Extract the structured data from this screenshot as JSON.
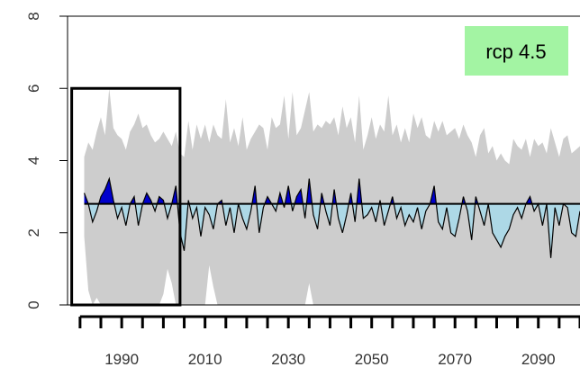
{
  "chart_data": {
    "type": "area",
    "title": "",
    "xlabel": "",
    "ylabel": "",
    "xlim": [
      1977,
      2100
    ],
    "ylim": [
      0,
      8
    ],
    "x_ticks": [
      1980,
      1985,
      1990,
      1995,
      2000,
      2005,
      2010,
      2015,
      2020,
      2025,
      2030,
      2035,
      2040,
      2045,
      2050,
      2055,
      2060,
      2065,
      2070,
      2075,
      2080,
      2085,
      2090,
      2095,
      2100
    ],
    "x_tick_labels": [
      "1990",
      "2010",
      "2030",
      "2050",
      "2070",
      "2090"
    ],
    "x_tick_label_values": [
      1990,
      2010,
      2030,
      2050,
      2070,
      2090
    ],
    "y_ticks": [
      0,
      2,
      4,
      6,
      8
    ],
    "y_tick_labels": [
      "0",
      "2",
      "4",
      "6",
      "8"
    ],
    "baseline": 2.8,
    "annotation": "rcp 4.5",
    "annotation_color": "#a3f4a3",
    "reference_box": {
      "x": [
        1978,
        2004
      ],
      "y": [
        0,
        6
      ]
    },
    "colors": {
      "envelope": "#cdcdcd",
      "above_baseline": "#0000cc",
      "below_baseline": "#add8e6",
      "line": "#000000"
    },
    "series": [
      {
        "values": [
          [
            1981.0,
            3.1
          ],
          [
            1982.0,
            2.8
          ],
          [
            1983.0,
            2.3
          ],
          [
            1984.0,
            2.6
          ],
          [
            1985.0,
            3.0
          ],
          [
            1986.0,
            3.2
          ],
          [
            1987.0,
            3.5
          ],
          [
            1988.0,
            2.9
          ],
          [
            1989.0,
            2.4
          ],
          [
            1990.0,
            2.7
          ],
          [
            1991.0,
            2.2
          ],
          [
            1992.0,
            2.8
          ],
          [
            1993.0,
            3.0
          ],
          [
            1994.0,
            2.2
          ],
          [
            1995.0,
            2.8
          ],
          [
            1996.0,
            3.1
          ],
          [
            1997.0,
            2.9
          ],
          [
            1998.0,
            2.6
          ],
          [
            1999.0,
            3.0
          ],
          [
            2000.0,
            2.9
          ],
          [
            2001.0,
            2.4
          ],
          [
            2002.0,
            2.8
          ],
          [
            2003.0,
            3.3
          ],
          [
            2004.0,
            2.0
          ],
          [
            2005.0,
            1.5
          ],
          [
            2006.0,
            2.9
          ],
          [
            2007.0,
            2.4
          ],
          [
            2008.0,
            2.7
          ],
          [
            2009.0,
            1.9
          ],
          [
            2010.0,
            2.7
          ],
          [
            2011.0,
            2.5
          ],
          [
            2012.0,
            2.1
          ],
          [
            2013.0,
            2.8
          ],
          [
            2014.0,
            2.9
          ],
          [
            2015.0,
            2.2
          ],
          [
            2016.0,
            2.7
          ],
          [
            2017.0,
            2.0
          ],
          [
            2018.0,
            2.8
          ],
          [
            2019.0,
            2.4
          ],
          [
            2020.0,
            2.1
          ],
          [
            2021.0,
            2.6
          ],
          [
            2022.0,
            3.3
          ],
          [
            2023.0,
            2.0
          ],
          [
            2024.0,
            2.7
          ],
          [
            2025.0,
            3.0
          ],
          [
            2026.0,
            2.8
          ],
          [
            2027.0,
            2.6
          ],
          [
            2028.0,
            3.1
          ],
          [
            2029.0,
            2.7
          ],
          [
            2030.0,
            3.3
          ],
          [
            2031.0,
            2.6
          ],
          [
            2032.0,
            3.0
          ],
          [
            2033.0,
            3.2
          ],
          [
            2034.0,
            2.4
          ],
          [
            2035.0,
            3.5
          ],
          [
            2036.0,
            2.5
          ],
          [
            2037.0,
            2.1
          ],
          [
            2038.0,
            3.1
          ],
          [
            2039.0,
            2.6
          ],
          [
            2040.0,
            2.2
          ],
          [
            2041.0,
            3.2
          ],
          [
            2042.0,
            2.4
          ],
          [
            2043.0,
            2.0
          ],
          [
            2044.0,
            2.5
          ],
          [
            2045.0,
            3.1
          ],
          [
            2046.0,
            2.3
          ],
          [
            2047.0,
            3.5
          ],
          [
            2048.0,
            2.4
          ],
          [
            2049.0,
            2.5
          ],
          [
            2050.0,
            2.7
          ],
          [
            2051.0,
            2.3
          ],
          [
            2052.0,
            2.9
          ],
          [
            2053.0,
            2.2
          ],
          [
            2054.0,
            2.6
          ],
          [
            2055.0,
            3.0
          ],
          [
            2056.0,
            2.4
          ],
          [
            2057.0,
            2.7
          ],
          [
            2058.0,
            2.2
          ],
          [
            2059.0,
            2.5
          ],
          [
            2060.0,
            2.3
          ],
          [
            2061.0,
            2.7
          ],
          [
            2062.0,
            2.1
          ],
          [
            2063.0,
            2.6
          ],
          [
            2064.0,
            2.8
          ],
          [
            2065.0,
            3.3
          ],
          [
            2066.0,
            2.3
          ],
          [
            2067.0,
            2.1
          ],
          [
            2068.0,
            2.7
          ],
          [
            2069.0,
            2.0
          ],
          [
            2070.0,
            1.9
          ],
          [
            2071.0,
            2.4
          ],
          [
            2072.0,
            3.0
          ],
          [
            2073.0,
            2.6
          ],
          [
            2074.0,
            1.8
          ],
          [
            2075.0,
            3.0
          ],
          [
            2076.0,
            2.6
          ],
          [
            2077.0,
            2.2
          ],
          [
            2078.0,
            2.8
          ],
          [
            2079.0,
            2.0
          ],
          [
            2080.0,
            1.8
          ],
          [
            2081.0,
            1.6
          ],
          [
            2082.0,
            1.9
          ],
          [
            2083.0,
            2.1
          ],
          [
            2084.0,
            2.5
          ],
          [
            2085.0,
            2.7
          ],
          [
            2086.0,
            2.4
          ],
          [
            2087.0,
            2.8
          ],
          [
            2088.0,
            3.0
          ],
          [
            2089.0,
            2.6
          ],
          [
            2090.0,
            2.8
          ],
          [
            2091.0,
            2.2
          ],
          [
            2092.0,
            2.8
          ],
          [
            2093.0,
            1.3
          ],
          [
            2094.0,
            2.7
          ],
          [
            2095.0,
            2.2
          ],
          [
            2096.0,
            2.8
          ],
          [
            2097.0,
            2.7
          ],
          [
            2098.0,
            2.0
          ],
          [
            2099.0,
            1.9
          ],
          [
            2100.0,
            2.6
          ]
        ]
      }
    ],
    "envelope_upper": [
      [
        1981,
        4.1
      ],
      [
        1982,
        4.5
      ],
      [
        1983,
        4.3
      ],
      [
        1984,
        4.8
      ],
      [
        1985,
        5.2
      ],
      [
        1986,
        4.7
      ],
      [
        1987,
        6.0
      ],
      [
        1988,
        4.9
      ],
      [
        1989,
        4.7
      ],
      [
        1990,
        4.6
      ],
      [
        1991,
        4.3
      ],
      [
        1992,
        4.8
      ],
      [
        1993,
        5.0
      ],
      [
        1994,
        5.3
      ],
      [
        1995,
        4.9
      ],
      [
        1996,
        5.0
      ],
      [
        1997,
        4.7
      ],
      [
        1998,
        4.5
      ],
      [
        1999,
        4.6
      ],
      [
        2000,
        4.8
      ],
      [
        2001,
        4.6
      ],
      [
        2002,
        4.4
      ],
      [
        2003,
        4.8
      ],
      [
        2004,
        4.2
      ],
      [
        2005,
        4.1
      ],
      [
        2006,
        5.1
      ],
      [
        2007,
        4.3
      ],
      [
        2008,
        5.0
      ],
      [
        2009,
        4.6
      ],
      [
        2010,
        5.0
      ],
      [
        2011,
        4.5
      ],
      [
        2012,
        5.0
      ],
      [
        2013,
        4.7
      ],
      [
        2014,
        4.6
      ],
      [
        2015,
        5.7
      ],
      [
        2016,
        4.5
      ],
      [
        2017,
        4.9
      ],
      [
        2018,
        4.4
      ],
      [
        2019,
        5.2
      ],
      [
        2020,
        4.3
      ],
      [
        2021,
        4.6
      ],
      [
        2022,
        4.8
      ],
      [
        2023,
        5.0
      ],
      [
        2024,
        4.9
      ],
      [
        2025,
        4.3
      ],
      [
        2026,
        5.2
      ],
      [
        2027,
        4.9
      ],
      [
        2028,
        5.0
      ],
      [
        2029,
        5.8
      ],
      [
        2030,
        4.6
      ],
      [
        2031,
        5.9
      ],
      [
        2032,
        4.7
      ],
      [
        2033,
        4.9
      ],
      [
        2034,
        5.4
      ],
      [
        2035,
        5.9
      ],
      [
        2036,
        4.8
      ],
      [
        2037,
        5.0
      ],
      [
        2038,
        4.9
      ],
      [
        2039,
        5.1
      ],
      [
        2040,
        5.0
      ],
      [
        2041,
        5.2
      ],
      [
        2042,
        4.7
      ],
      [
        2043,
        5.5
      ],
      [
        2044,
        4.9
      ],
      [
        2045,
        5.2
      ],
      [
        2046,
        4.5
      ],
      [
        2047,
        5.8
      ],
      [
        2048,
        4.3
      ],
      [
        2049,
        4.7
      ],
      [
        2050,
        5.2
      ],
      [
        2051,
        4.6
      ],
      [
        2052,
        5.0
      ],
      [
        2053,
        4.8
      ],
      [
        2054,
        5.8
      ],
      [
        2055,
        4.7
      ],
      [
        2056,
        5.0
      ],
      [
        2057,
        4.5
      ],
      [
        2058,
        4.9
      ],
      [
        2059,
        4.5
      ],
      [
        2060,
        5.3
      ],
      [
        2061,
        4.9
      ],
      [
        2062,
        5.2
      ],
      [
        2063,
        4.7
      ],
      [
        2064,
        4.6
      ],
      [
        2065,
        5.1
      ],
      [
        2066,
        4.8
      ],
      [
        2067,
        5.1
      ],
      [
        2068,
        4.7
      ],
      [
        2069,
        4.8
      ],
      [
        2070,
        4.9
      ],
      [
        2071,
        4.6
      ],
      [
        2072,
        5.0
      ],
      [
        2073,
        4.7
      ],
      [
        2074,
        4.5
      ],
      [
        2075,
        4.1
      ],
      [
        2076,
        4.7
      ],
      [
        2077,
        4.9
      ],
      [
        2078,
        4.2
      ],
      [
        2079,
        4.4
      ],
      [
        2080,
        4.0
      ],
      [
        2081,
        4.2
      ],
      [
        2082,
        4.0
      ],
      [
        2083,
        3.9
      ],
      [
        2084,
        4.6
      ],
      [
        2085,
        4.4
      ],
      [
        2086,
        4.3
      ],
      [
        2087,
        4.6
      ],
      [
        2088,
        4.1
      ],
      [
        2089,
        4.6
      ],
      [
        2090,
        4.4
      ],
      [
        2091,
        4.5
      ],
      [
        2092,
        4.2
      ],
      [
        2093,
        4.9
      ],
      [
        2094,
        4.5
      ],
      [
        2095,
        4.1
      ],
      [
        2096,
        4.6
      ],
      [
        2097,
        4.7
      ],
      [
        2098,
        4.2
      ],
      [
        2099,
        4.3
      ],
      [
        2100,
        4.4
      ]
    ],
    "envelope_lower": [
      [
        1981,
        1.9
      ],
      [
        1982,
        0.4
      ],
      [
        1983,
        0.0
      ],
      [
        1984,
        0.2
      ],
      [
        1985,
        0.0
      ],
      [
        1986,
        0.0
      ],
      [
        1987,
        0.0
      ],
      [
        1988,
        0.0
      ],
      [
        1989,
        0.0
      ],
      [
        1990,
        0.0
      ],
      [
        1991,
        0.0
      ],
      [
        1992,
        0.0
      ],
      [
        1993,
        0.0
      ],
      [
        1994,
        0.0
      ],
      [
        1995,
        0.0
      ],
      [
        1996,
        0.0
      ],
      [
        1997,
        0.0
      ],
      [
        1998,
        0.0
      ],
      [
        1999,
        0.0
      ],
      [
        2000,
        0.3
      ],
      [
        2001,
        1.0
      ],
      [
        2002,
        0.6
      ],
      [
        2003,
        0.0
      ],
      [
        2004,
        0.0
      ],
      [
        2005,
        0.0
      ],
      [
        2006,
        0.0
      ],
      [
        2007,
        0.0
      ],
      [
        2008,
        0.0
      ],
      [
        2009,
        0.0
      ],
      [
        2010,
        0.0
      ],
      [
        2011,
        1.1
      ],
      [
        2012,
        0.5
      ],
      [
        2013,
        0.0
      ],
      [
        2014,
        0.0
      ],
      [
        2015,
        0.0
      ],
      [
        2016,
        0.0
      ],
      [
        2017,
        0.0
      ],
      [
        2018,
        0.0
      ],
      [
        2019,
        0.0
      ],
      [
        2020,
        0.0
      ],
      [
        2021,
        0.0
      ],
      [
        2022,
        0.0
      ],
      [
        2023,
        0.0
      ],
      [
        2024,
        0.0
      ],
      [
        2025,
        0.0
      ],
      [
        2026,
        0.0
      ],
      [
        2027,
        0.0
      ],
      [
        2028,
        0.0
      ],
      [
        2029,
        0.0
      ],
      [
        2030,
        0.0
      ],
      [
        2031,
        0.0
      ],
      [
        2032,
        0.0
      ],
      [
        2033,
        0.0
      ],
      [
        2034,
        0.0
      ],
      [
        2035,
        0.6
      ],
      [
        2036,
        0.0
      ],
      [
        2037,
        0.0
      ],
      [
        2038,
        0.0
      ],
      [
        2039,
        0.0
      ],
      [
        2040,
        0.0
      ],
      [
        2041,
        0.0
      ],
      [
        2042,
        0.0
      ],
      [
        2043,
        0.0
      ],
      [
        2044,
        0.0
      ],
      [
        2045,
        0.0
      ],
      [
        2046,
        0.0
      ],
      [
        2047,
        0.0
      ],
      [
        2048,
        0.0
      ],
      [
        2049,
        0.0
      ],
      [
        2050,
        0.0
      ],
      [
        2051,
        0.0
      ],
      [
        2052,
        0.0
      ],
      [
        2053,
        0.0
      ],
      [
        2054,
        0.0
      ],
      [
        2055,
        0.0
      ],
      [
        2056,
        0.0
      ],
      [
        2057,
        0.0
      ],
      [
        2058,
        0.0
      ],
      [
        2059,
        0.0
      ],
      [
        2060,
        0.0
      ],
      [
        2061,
        0.0
      ],
      [
        2062,
        0.0
      ],
      [
        2063,
        0.0
      ],
      [
        2064,
        0.0
      ],
      [
        2065,
        0.0
      ],
      [
        2066,
        0.0
      ],
      [
        2067,
        0.0
      ],
      [
        2068,
        0.0
      ],
      [
        2069,
        0.0
      ],
      [
        2070,
        0.0
      ],
      [
        2071,
        0.0
      ],
      [
        2072,
        0.0
      ],
      [
        2073,
        0.0
      ],
      [
        2074,
        0.0
      ],
      [
        2075,
        0.0
      ],
      [
        2076,
        0.0
      ],
      [
        2077,
        0.0
      ],
      [
        2078,
        0.0
      ],
      [
        2079,
        0.0
      ],
      [
        2080,
        0.0
      ],
      [
        2081,
        0.0
      ],
      [
        2082,
        0.0
      ],
      [
        2083,
        0.0
      ],
      [
        2084,
        0.0
      ],
      [
        2085,
        0.0
      ],
      [
        2086,
        0.0
      ],
      [
        2087,
        0.0
      ],
      [
        2088,
        0.0
      ],
      [
        2089,
        0.0
      ],
      [
        2090,
        0.0
      ],
      [
        2091,
        0.0
      ],
      [
        2092,
        0.0
      ],
      [
        2093,
        0.0
      ],
      [
        2094,
        0.0
      ],
      [
        2095,
        0.0
      ],
      [
        2096,
        0.0
      ],
      [
        2097,
        0.0
      ],
      [
        2098,
        0.0
      ],
      [
        2099,
        0.0
      ],
      [
        2100,
        0.0
      ]
    ]
  }
}
